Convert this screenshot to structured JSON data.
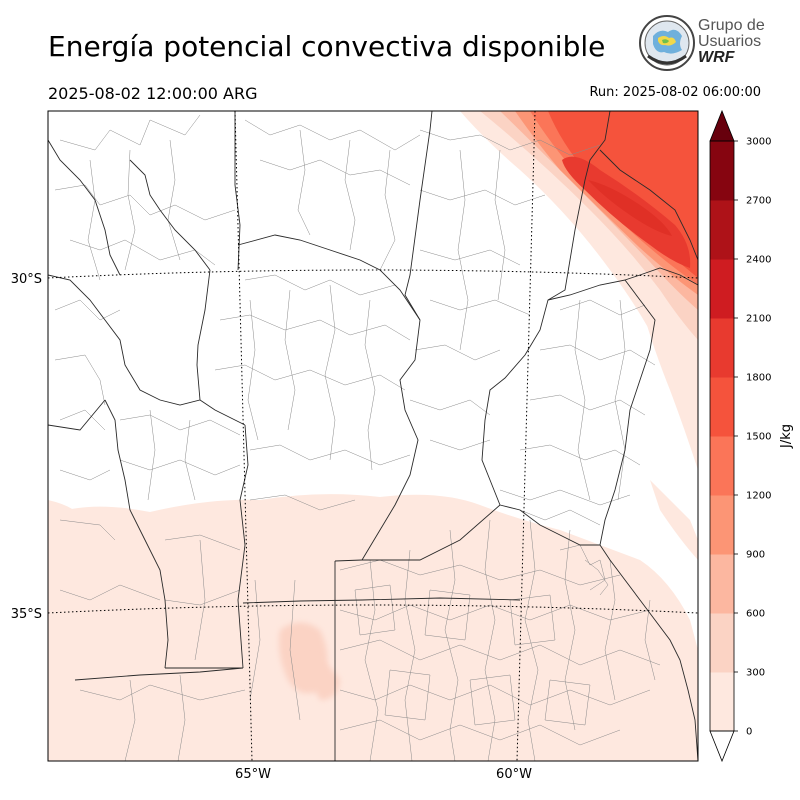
{
  "header": {
    "title": "Energía potencial convectiva disponible",
    "valid_time": "2025-08-02 12:00:00 ARG",
    "run_time": "Run: 2025-08-02 06:00:00"
  },
  "logo": {
    "line1": "Grupo de",
    "line2": "Usuarios",
    "line3": "WRF"
  },
  "map": {
    "lat_labels": [
      "30°S",
      "35°S"
    ],
    "lon_labels": [
      "65°W",
      "60°W"
    ],
    "graticule_lats": [
      -30,
      -35
    ],
    "graticule_lons": [
      -65,
      -60
    ]
  },
  "colorbar": {
    "unit": "J/kg",
    "ticks": [
      "0",
      "300",
      "600",
      "900",
      "1200",
      "1500",
      "1800",
      "2100",
      "2400",
      "2700",
      "3000"
    ],
    "levels": [
      0,
      300,
      600,
      900,
      1200,
      1500,
      1800,
      2100,
      2400,
      2700,
      3000
    ],
    "colors": [
      "#fee8df",
      "#fbd3c4",
      "#fcb7a0",
      "#fc9575",
      "#fb7558",
      "#f5533c",
      "#e83a2f",
      "#cf1c21",
      "#ae1218",
      "#860510"
    ],
    "extend_min_color": "#ffffff",
    "extend_max_color": "#67000d"
  }
}
